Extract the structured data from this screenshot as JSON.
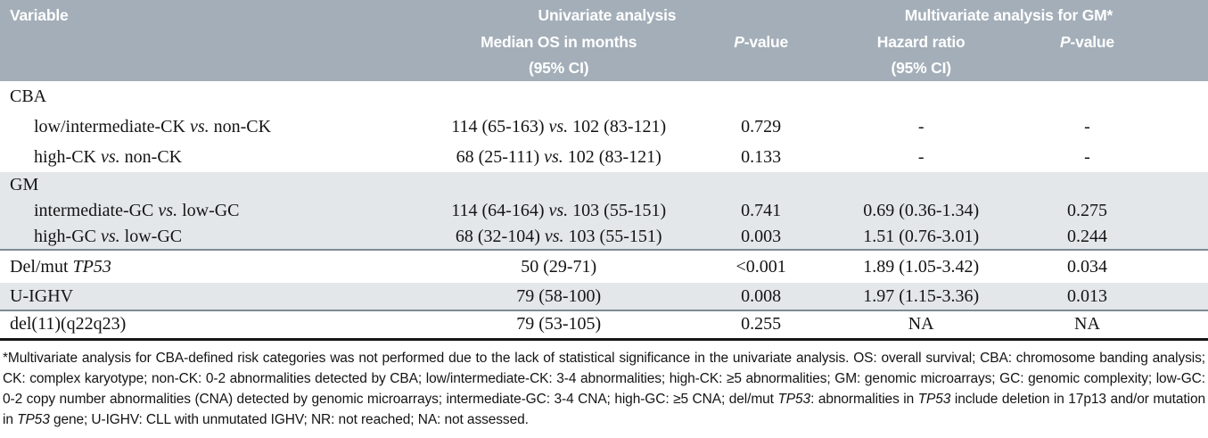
{
  "colors": {
    "header_bg": "#a3aeb8",
    "header_text": "#ffffff",
    "shade_row_bg": "#e3e7e9",
    "section_rule": "#7e8c95",
    "table_bottom_rule": "#161616",
    "body_text": "#141414"
  },
  "table": {
    "header": {
      "variable": "Variable",
      "univariate_group": "Univariate analysis",
      "multivariate_group": "Multivariate analysis for GM*",
      "median_os_line1": "Median OS in months",
      "median_os_line2": "(95% CI)",
      "p_value_univariate": "{i}P{/i}-value",
      "hazard_ratio_line1": "Hazard ratio",
      "hazard_ratio_line2": "(95% CI)",
      "p_value_multivariate": "{i}P{/i}-value"
    },
    "rows": [
      {
        "label": "CBA",
        "os": "",
        "p1": "",
        "hr": "",
        "p2": ""
      },
      {
        "label": "low/intermediate-CK {i}vs.{/i} non-CK",
        "os": "114 (65-163) {i}vs.{/i} 102 (83-121)",
        "p1": "0.729",
        "hr": "-",
        "p2": "-"
      },
      {
        "label": "high-CK {i}vs.{/i} non-CK",
        "os": "68 (25-111) {i}vs.{/i} 102 (83-121)",
        "p1": "0.133",
        "hr": "-",
        "p2": "-"
      },
      {
        "label": "GM",
        "os": "",
        "p1": "",
        "hr": "",
        "p2": ""
      },
      {
        "label": "intermediate-GC {i}vs.{/i} low-GC",
        "os": "114 (64-164) {i}vs.{/i} 103 (55-151)",
        "p1": "0.741",
        "hr": "0.69 (0.36-1.34)",
        "p2": "0.275"
      },
      {
        "label": "high-GC {i}vs.{/i} low-GC",
        "os": "68 (32-104) {i}vs.{/i} 103 (55-151)",
        "p1": "0.003",
        "hr": "1.51 (0.76-3.01)",
        "p2": "0.244"
      },
      {
        "label": "Del/mut {i}TP53{/i}",
        "os": "50 (29-71)",
        "p1": "<0.001",
        "hr": "1.89 (1.05-3.42)",
        "p2": "0.034"
      },
      {
        "label": "U-IGHV",
        "os": "79 (58-100)",
        "p1": "0.008",
        "hr": "1.97 (1.15-3.36)",
        "p2": "0.013"
      },
      {
        "label": "del(11)(q22q23)",
        "os": "79 (53-105)",
        "p1": "0.255",
        "hr": "NA",
        "p2": "NA"
      }
    ]
  },
  "footnote": "*Multivariate analysis for CBA-defined risk categories was not performed due to the lack of statistical significance in the univariate analysis. OS: overall survival; CBA: chromosome banding analysis; CK: complex karyotype; non-CK: 0-2 abnormalities detected by CBA; low/intermediate-CK: 3-4 abnormalities; high-CK: ≥5 abnormalities; GM: genomic microarrays; GC: genomic complexity; low-GC: 0-2 copy number abnormalities (CNA) detected by genomic microarrays; intermediate-GC: 3-4 CNA; high-GC: ≥5 CNA; del/mut {i}TP53{/i}: abnormalities in {i}TP53{/i} include deletion in 17p13 and/or mutation in {i}TP53{/i} gene; U-IGHV: CLL with unmutated IGHV; NR: not reached; NA: not assessed."
}
